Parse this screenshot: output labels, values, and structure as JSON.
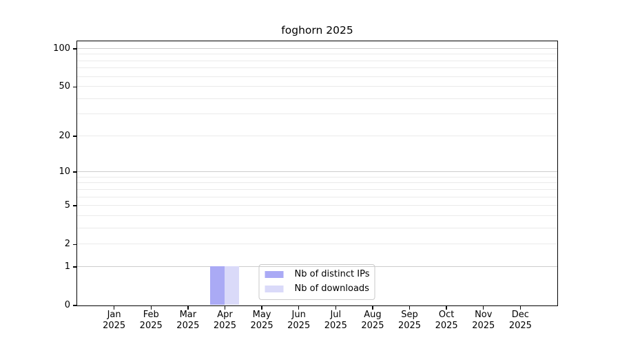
{
  "title": "foghorn 2025",
  "chart_data": {
    "type": "bar",
    "title": "foghorn 2025",
    "categories": [
      "Jan",
      "Feb",
      "Mar",
      "Apr",
      "May",
      "Jun",
      "Jul",
      "Aug",
      "Sep",
      "Oct",
      "Nov",
      "Dec"
    ],
    "category_year_line": "2025",
    "series": [
      {
        "name": "Nb of distinct IPs",
        "color": "#aaaaf5",
        "values": [
          0,
          0,
          0,
          1,
          0,
          0,
          0,
          0,
          0,
          0,
          0,
          0
        ]
      },
      {
        "name": "Nb of downloads",
        "color": "#dadaf9",
        "values": [
          0,
          0,
          0,
          1,
          0,
          0,
          0,
          0,
          0,
          0,
          0,
          0
        ]
      }
    ],
    "xlabel": "",
    "ylabel": "",
    "y_scale": "log1p",
    "y_labeled_ticks": [
      0,
      1,
      2,
      5,
      10,
      20,
      50,
      100
    ],
    "y_major_grid_values": [
      1,
      10,
      100
    ],
    "y_minor_grid_values": [
      2,
      3,
      4,
      5,
      6,
      7,
      8,
      9,
      20,
      30,
      40,
      50,
      60,
      70,
      80,
      90
    ],
    "ylim": [
      0,
      113
    ],
    "grid": "horizontal",
    "legend": {
      "position": "lower center",
      "entries": [
        "Nb of distinct IPs",
        "Nb of downloads"
      ]
    }
  },
  "styles": {
    "background": "#ffffff",
    "spine_color": "#000000",
    "major_grid_color": "#cccccc",
    "minor_grid_color": "#eaeaea",
    "legend_border_color": "#c9c9c9",
    "text_color": "#000000"
  }
}
